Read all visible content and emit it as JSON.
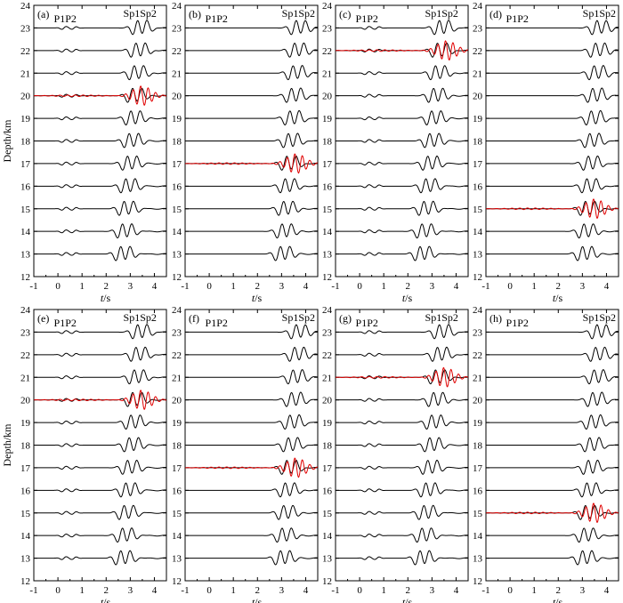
{
  "chart_data": {
    "type": "line",
    "description_panels_order": [
      "a",
      "b",
      "c",
      "d",
      "e",
      "f",
      "g",
      "h"
    ],
    "xlabel_italic": "t",
    "xlabel_unit": "/s",
    "ylabel": "Depth/km",
    "xlim": [
      -1,
      4.5
    ],
    "ylim": [
      12,
      24
    ],
    "xticks": [
      -1,
      0,
      1,
      2,
      3,
      4
    ],
    "yticks": [
      12,
      13,
      14,
      15,
      16,
      17,
      18,
      19,
      20,
      21,
      22,
      23,
      24
    ],
    "trace_depths_km": [
      13,
      14,
      15,
      16,
      17,
      18,
      19,
      20,
      21,
      22,
      23
    ],
    "phase_labels": {
      "p": "P1P2",
      "sp": "Sp1Sp2"
    },
    "trace_color": "#000000",
    "highlight_color": "#e00000",
    "panels": [
      {
        "label": "(a)",
        "highlight_depth_km": 20,
        "sp_time_at_13km_s": 2.55,
        "sp_time_at_23km_s": 3.25,
        "p_time_s": 0.25,
        "p_visible": true
      },
      {
        "label": "(b)",
        "highlight_depth_km": 17,
        "sp_time_at_13km_s": 2.9,
        "sp_time_at_23km_s": 3.55,
        "p_time_s": 0.45,
        "p_visible": false
      },
      {
        "label": "(c)",
        "highlight_depth_km": 22,
        "sp_time_at_13km_s": 2.45,
        "sp_time_at_23km_s": 3.25,
        "p_time_s": 0.3,
        "p_visible": true
      },
      {
        "label": "(d)",
        "highlight_depth_km": 15,
        "sp_time_at_13km_s": 2.95,
        "sp_time_at_23km_s": 3.55,
        "p_time_s": 0.45,
        "p_visible": false
      },
      {
        "label": "(e)",
        "highlight_depth_km": 20,
        "sp_time_at_13km_s": 2.55,
        "sp_time_at_23km_s": 3.25,
        "p_time_s": 0.25,
        "p_visible": true
      },
      {
        "label": "(f)",
        "highlight_depth_km": 17,
        "sp_time_at_13km_s": 2.9,
        "sp_time_at_23km_s": 3.55,
        "p_time_s": 0.45,
        "p_visible": false
      },
      {
        "label": "(g)",
        "highlight_depth_km": 21,
        "sp_time_at_13km_s": 2.45,
        "sp_time_at_23km_s": 3.25,
        "p_time_s": 0.3,
        "p_visible": true
      },
      {
        "label": "(h)",
        "highlight_depth_km": 15,
        "sp_time_at_13km_s": 2.95,
        "sp_time_at_23km_s": 3.55,
        "p_time_s": 0.45,
        "p_visible": false
      }
    ]
  }
}
